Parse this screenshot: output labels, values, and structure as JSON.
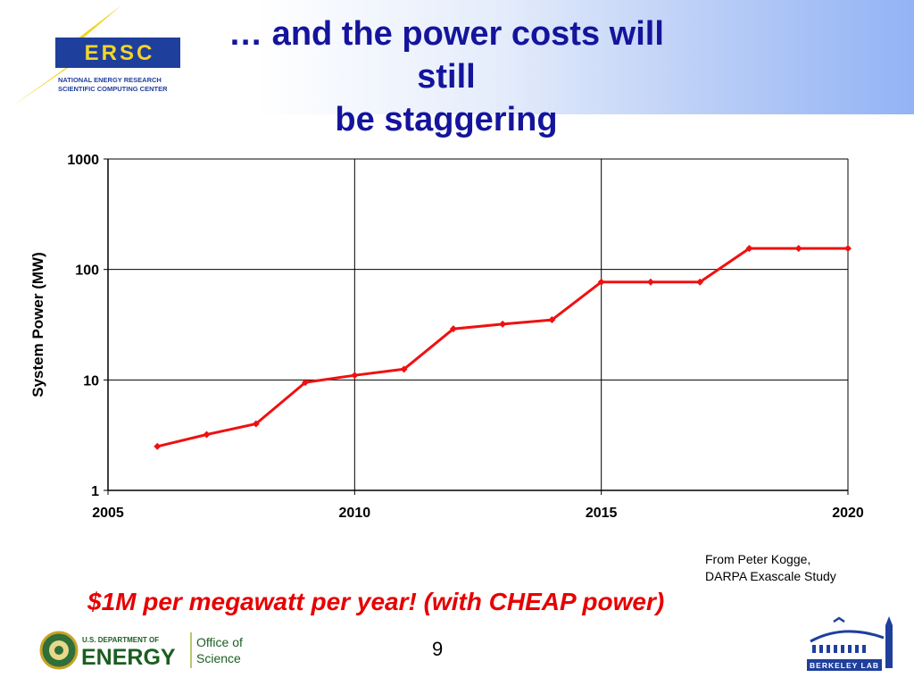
{
  "slide": {
    "title_line1": "… and the power costs will still",
    "title_line2": "be staggering",
    "tagline": "$1M per megawatt per year! (with CHEAP power)",
    "source_line1": "From Peter Kogge,",
    "source_line2": "DARPA Exascale Study",
    "page_number": "9"
  },
  "logos": {
    "nersc_acronym": "ERSC",
    "nersc_line1": "NATIONAL ENERGY RESEARCH",
    "nersc_line2": "SCIENTIFIC COMPUTING CENTER",
    "doe_small": "U.S. DEPARTMENT OF",
    "doe_big": "ENERGY",
    "doe_office1": "Office of",
    "doe_office2": "Science",
    "lbl_text": "BERKELEY LAB"
  },
  "colors": {
    "title": "#14149c",
    "series_line": "#ee1111",
    "tagline": "#e60000"
  },
  "chart_data": {
    "type": "line",
    "ylabel": "System  Power (MW)",
    "xlabel": "",
    "y_scale": "log",
    "ylim": [
      1,
      1000
    ],
    "xlim": [
      2005,
      2020
    ],
    "x_ticks": [
      "2005",
      "2010",
      "2015",
      "2020"
    ],
    "y_ticks": [
      "1",
      "10",
      "100",
      "1000"
    ],
    "grid": true,
    "series": [
      {
        "x": [
          2006,
          2007,
          2008,
          2009,
          2010,
          2011,
          2012,
          2013,
          2014,
          2015,
          2016,
          2017,
          2018,
          2019,
          2020
        ],
        "values": [
          2.5,
          3.2,
          4.0,
          9.5,
          11,
          12.5,
          29,
          32,
          35,
          77,
          77,
          77,
          155,
          155,
          155
        ]
      }
    ]
  }
}
